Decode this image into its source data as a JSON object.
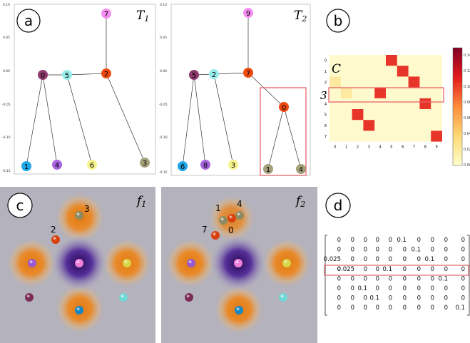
{
  "panels": {
    "a": {
      "letter": "a",
      "title": "T",
      "sub": "1",
      "ticks": [
        "0.10",
        "0.05",
        "0.00",
        "-0.05",
        "-0.10",
        "-0.15"
      ],
      "nodes": [
        {
          "id": "7",
          "color": "#f58ef2"
        },
        {
          "id": "0",
          "color": "#8d3b6e"
        },
        {
          "id": "5",
          "color": "#96ecea"
        },
        {
          "id": "2",
          "color": "#ee4b10"
        },
        {
          "id": "1",
          "color": "#1ea6e8"
        },
        {
          "id": "4",
          "color": "#a765e0"
        },
        {
          "id": "6",
          "color": "#f6f28c"
        },
        {
          "id": "3",
          "color": "#a3a07a"
        }
      ]
    },
    "a2": {
      "title": "T",
      "sub": "2",
      "ticks": [
        "0.10",
        "0.05",
        "0.00",
        "-0.05",
        "-0.10",
        "-0.15"
      ],
      "nodes": [
        {
          "id": "9",
          "color": "#f58ef2"
        },
        {
          "id": "5",
          "color": "#8d3b6e"
        },
        {
          "id": "2",
          "color": "#96ecea"
        },
        {
          "id": "7",
          "color": "#ee4b10"
        },
        {
          "id": "0",
          "color": "#ee4b10"
        },
        {
          "id": "6",
          "color": "#1ea6e8"
        },
        {
          "id": "8",
          "color": "#a765e0"
        },
        {
          "id": "3",
          "color": "#f6f28c"
        },
        {
          "id": "1",
          "color": "#a3a07a"
        },
        {
          "id": "4",
          "color": "#a3a07a"
        }
      ]
    },
    "b": {
      "letter": "b",
      "matrix_label": "C",
      "row_label": "3",
      "rows": [
        "0",
        "1",
        "2",
        "3",
        "4",
        "5",
        "6",
        "7"
      ],
      "cols": [
        "0",
        "1",
        "2",
        "3",
        "4",
        "5",
        "6",
        "7",
        "8",
        "9"
      ],
      "colorbar_ticks": [
        "0.14",
        "0.12",
        "0.10",
        "0.08",
        "0.06",
        "0.04",
        "0.02",
        "0.00"
      ],
      "cells": [
        {
          "r": 0,
          "c": 5,
          "v": 0.1
        },
        {
          "r": 1,
          "c": 6,
          "v": 0.1
        },
        {
          "r": 2,
          "c": 7,
          "v": 0.1
        },
        {
          "r": 2,
          "c": 0,
          "v": 0.025
        },
        {
          "r": 3,
          "c": 1,
          "v": 0.025
        },
        {
          "r": 3,
          "c": 4,
          "v": 0.1
        },
        {
          "r": 4,
          "c": 8,
          "v": 0.1
        },
        {
          "r": 5,
          "c": 2,
          "v": 0.1
        },
        {
          "r": 6,
          "c": 3,
          "v": 0.1
        },
        {
          "r": 7,
          "c": 9,
          "v": 0.1
        }
      ]
    },
    "c": {
      "letter": "c",
      "title": "f",
      "sub": "1",
      "labels": [
        {
          "t": "3"
        },
        {
          "t": "2"
        }
      ]
    },
    "c2": {
      "title": "f",
      "sub": "2",
      "labels": [
        {
          "t": "1"
        },
        {
          "t": "4"
        },
        {
          "t": "7"
        },
        {
          "t": "0"
        }
      ]
    },
    "d": {
      "letter": "d",
      "matrix": [
        [
          "0",
          "0",
          "0",
          "0",
          "0",
          "0.1",
          "0",
          "0",
          "0",
          "0"
        ],
        [
          "0",
          "0",
          "0",
          "0",
          "0",
          "0",
          "0.1",
          "0",
          "0",
          "0"
        ],
        [
          "0.025",
          "0",
          "0",
          "0",
          "0",
          "0",
          "0",
          "0.1",
          "0",
          "0"
        ],
        [
          "0",
          "0.025",
          "0",
          "0",
          "0.1",
          "0",
          "0",
          "0",
          "0",
          "0"
        ],
        [
          "0",
          "0",
          "0",
          "0",
          "0",
          "0",
          "0",
          "0",
          "0.1",
          "0"
        ],
        [
          "0",
          "0",
          "0.1",
          "0",
          "0",
          "0",
          "0",
          "0",
          "0",
          "0"
        ],
        [
          "0",
          "0",
          "0",
          "0.1",
          "0",
          "0",
          "0",
          "0",
          "0",
          "0"
        ],
        [
          "0",
          "0",
          "0",
          "0",
          "0",
          "0",
          "0",
          "0",
          "0",
          "0.1"
        ]
      ]
    }
  }
}
